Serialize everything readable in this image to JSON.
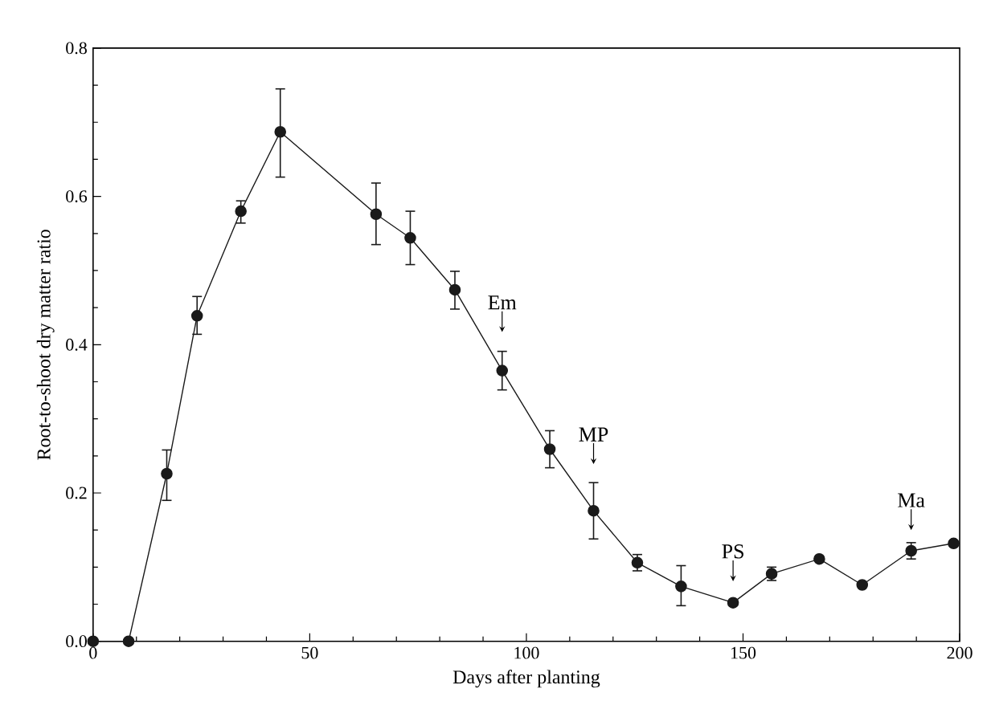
{
  "chart_data": {
    "type": "line",
    "xlabel": "Days after planting",
    "ylabel": "Root-to-shoot dry matter ratio",
    "xlim": [
      0,
      200
    ],
    "ylim": [
      0,
      0.8
    ],
    "xticks": [
      0,
      50,
      100,
      150,
      200
    ],
    "yticks": [
      {
        "value": 0,
        "label": "0.0"
      },
      {
        "value": 0.2,
        "label": "0.2"
      },
      {
        "value": 0.4,
        "label": "0.4"
      },
      {
        "value": 0.6,
        "label": "0.6"
      },
      {
        "value": 0.8,
        "label": "0.8"
      }
    ],
    "x": [
      0,
      8.2,
      17.0,
      24.0,
      34.1,
      43.2,
      65.3,
      73.2,
      83.5,
      94.4,
      105.4,
      115.5,
      125.6,
      135.7,
      147.7,
      156.6,
      167.6,
      177.5,
      188.8,
      198.6
    ],
    "series": [
      {
        "color": "#1a1a1a",
        "values": [
          0,
          0,
          0.226,
          0.439,
          0.58,
          0.687,
          0.576,
          0.544,
          0.474,
          0.365,
          0.259,
          0.176,
          0.106,
          0.074,
          0.052,
          0.091,
          0.111,
          0.076,
          0.122,
          0.132
        ],
        "errors": [
          null,
          null,
          [
            0.19,
            0.258
          ],
          [
            0.414,
            0.465
          ],
          [
            0.564,
            0.594
          ],
          [
            0.626,
            0.745
          ],
          [
            0.535,
            0.618
          ],
          [
            0.508,
            0.58
          ],
          [
            0.448,
            0.499
          ],
          [
            0.339,
            0.391
          ],
          [
            0.234,
            0.284
          ],
          [
            0.138,
            0.214
          ],
          [
            0.095,
            0.117
          ],
          [
            0.048,
            0.102
          ],
          null,
          [
            0.082,
            0.1
          ],
          null,
          null,
          [
            0.111,
            0.133
          ],
          null
        ]
      }
    ],
    "marker": "circle",
    "line_style": "solid",
    "grid": false,
    "legend": false,
    "annotations": [
      {
        "text": "Em",
        "x": 94.4,
        "y": 0.417
      },
      {
        "text": "MP",
        "x": 115.5,
        "y": 0.239
      },
      {
        "text": "PS",
        "x": 147.7,
        "y": 0.081
      },
      {
        "text": "Ma",
        "x": 188.8,
        "y": 0.15
      }
    ]
  }
}
